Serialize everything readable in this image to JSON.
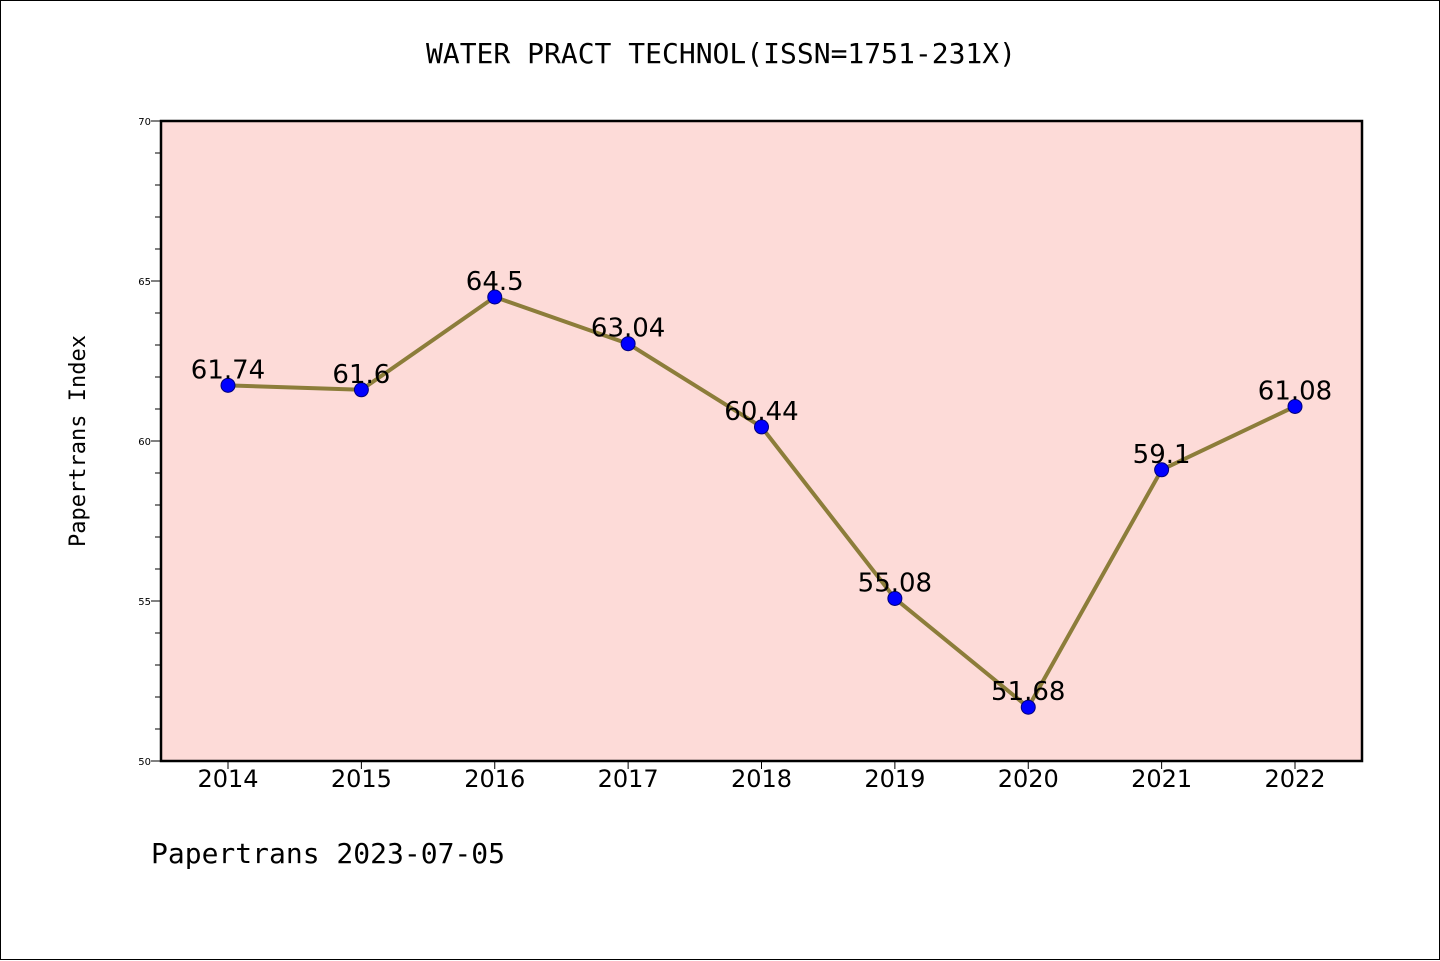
{
  "chart_data": {
    "type": "line",
    "title": "WATER PRACT TECHNOL(ISSN=1751-231X)",
    "ylabel": "Papertrans Index",
    "xlabel": "",
    "categories": [
      "2014",
      "2015",
      "2016",
      "2017",
      "2018",
      "2019",
      "2020",
      "2021",
      "2022"
    ],
    "series": [
      {
        "values": [
          61.74,
          61.6,
          64.5,
          63.04,
          60.44,
          55.08,
          51.68,
          59.1,
          61.08
        ],
        "data_labels": [
          "61.74",
          "61.6",
          "64.5",
          "63.04",
          "60.44",
          "55.08",
          "51.68",
          "59.1",
          "61.08"
        ]
      }
    ],
    "ylim": [
      50,
      70
    ],
    "yticks": [
      "50",
      "55",
      "60",
      "65",
      "70"
    ],
    "colors": {
      "plot_background": "#fddbd8",
      "line": "#8c7d3a",
      "marker": "#0000ff"
    },
    "grid": false,
    "legend": "none"
  },
  "footer": {
    "text": "Papertrans 2023-07-05"
  }
}
